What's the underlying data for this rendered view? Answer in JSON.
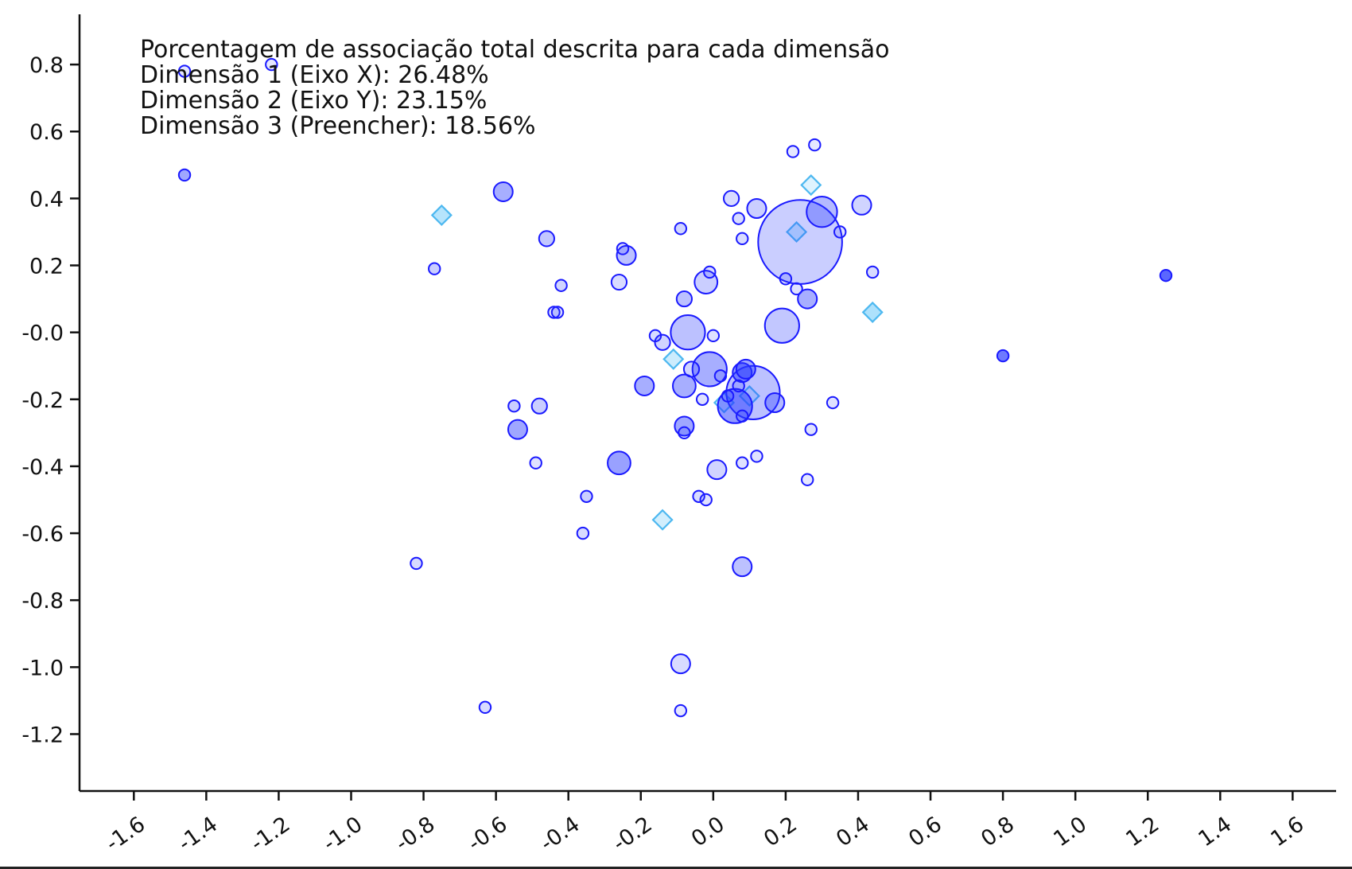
{
  "chart_data": {
    "type": "scatter",
    "annotation": [
      "Porcentagem de associação total descrita para cada dimensão",
      "Dimensão 1 (Eixo X): 26.48%",
      "Dimensão 2 (Eixo Y): 23.15%",
      "Dimensão 3 (Preencher): 18.56%"
    ],
    "xlim": [
      -1.75,
      1.72
    ],
    "ylim": [
      -1.37,
      0.95
    ],
    "xticks": [
      -1.6,
      -1.4,
      -1.2,
      -1.0,
      -0.8,
      -0.6,
      -0.4,
      -0.2,
      0.0,
      0.2,
      0.4,
      0.6,
      0.8,
      1.0,
      1.2,
      1.4,
      1.6
    ],
    "xtick_labels": [
      "-1.6",
      "-1.4",
      "-1.2",
      "-1.0",
      "-0.8",
      "-0.6",
      "-0.4",
      "-0.2",
      "0.0",
      "0.2",
      "0.4",
      "0.6",
      "0.8",
      "1.0",
      "1.2",
      "1.4",
      "1.6"
    ],
    "yticks": [
      0.8,
      0.6,
      0.4,
      0.2,
      0.0,
      -0.2,
      -0.4,
      -0.6,
      -0.8,
      -1.0,
      -1.2
    ],
    "ytick_labels": [
      "0.8",
      "0.6",
      "0.4",
      "0.2",
      "-0.0",
      "-0.2",
      "-0.4",
      "-0.6",
      "-0.8",
      "-1.0",
      "-1.2"
    ],
    "colors": {
      "circle_stroke": "#1a1aff",
      "circle_fill": "#2b3cff",
      "diamond_stroke": "#4db8f0",
      "diamond_fill": "#7fd0fa"
    },
    "circles": [
      {
        "x": -1.46,
        "y": 0.78,
        "size": 3,
        "fill": 0.0
      },
      {
        "x": -1.22,
        "y": 0.8,
        "size": 3,
        "fill": 0.0
      },
      {
        "x": -1.46,
        "y": 0.47,
        "size": 3,
        "fill": 0.5
      },
      {
        "x": -0.58,
        "y": 0.42,
        "size": 5,
        "fill": 0.45
      },
      {
        "x": -0.46,
        "y": 0.28,
        "size": 4,
        "fill": 0.25
      },
      {
        "x": -0.77,
        "y": 0.19,
        "size": 3,
        "fill": 0.2
      },
      {
        "x": -0.42,
        "y": 0.14,
        "size": 3,
        "fill": 0.15
      },
      {
        "x": -0.44,
        "y": 0.06,
        "size": 3,
        "fill": 0.1
      },
      {
        "x": -0.43,
        "y": 0.06,
        "size": 3,
        "fill": 0.1
      },
      {
        "x": -0.25,
        "y": 0.25,
        "size": 3,
        "fill": 0.1
      },
      {
        "x": -0.24,
        "y": 0.23,
        "size": 5,
        "fill": 0.3
      },
      {
        "x": -0.26,
        "y": 0.15,
        "size": 4,
        "fill": 0.1
      },
      {
        "x": -0.09,
        "y": 0.31,
        "size": 3,
        "fill": 0.15
      },
      {
        "x": -0.08,
        "y": 0.1,
        "size": 4,
        "fill": 0.3
      },
      {
        "x": -0.02,
        "y": 0.15,
        "size": 6,
        "fill": 0.2
      },
      {
        "x": -0.01,
        "y": 0.18,
        "size": 3,
        "fill": 0.1
      },
      {
        "x": 0.05,
        "y": 0.4,
        "size": 4,
        "fill": 0.1
      },
      {
        "x": 0.07,
        "y": 0.34,
        "size": 3,
        "fill": 0.1
      },
      {
        "x": 0.12,
        "y": 0.37,
        "size": 5,
        "fill": 0.2
      },
      {
        "x": 0.22,
        "y": 0.54,
        "size": 3,
        "fill": 0.0
      },
      {
        "x": 0.28,
        "y": 0.56,
        "size": 3,
        "fill": 0.0
      },
      {
        "x": 0.08,
        "y": 0.28,
        "size": 3,
        "fill": 0.1
      },
      {
        "x": 0.24,
        "y": 0.27,
        "size": 22,
        "fill": 0.2
      },
      {
        "x": 0.3,
        "y": 0.36,
        "size": 8,
        "fill": 0.35
      },
      {
        "x": 0.35,
        "y": 0.3,
        "size": 3,
        "fill": 0.05
      },
      {
        "x": 0.41,
        "y": 0.38,
        "size": 5,
        "fill": 0.15
      },
      {
        "x": 0.44,
        "y": 0.18,
        "size": 3,
        "fill": 0.1
      },
      {
        "x": 0.2,
        "y": 0.16,
        "size": 3,
        "fill": 0.1
      },
      {
        "x": 0.23,
        "y": 0.13,
        "size": 3,
        "fill": 0.05
      },
      {
        "x": 0.26,
        "y": 0.1,
        "size": 5,
        "fill": 0.45
      },
      {
        "x": 1.25,
        "y": 0.17,
        "size": 3,
        "fill": 1.0
      },
      {
        "x": 0.8,
        "y": -0.07,
        "size": 3,
        "fill": 0.85
      },
      {
        "x": -0.16,
        "y": -0.01,
        "size": 3,
        "fill": 0.1
      },
      {
        "x": -0.14,
        "y": -0.03,
        "size": 4,
        "fill": 0.15
      },
      {
        "x": -0.07,
        "y": 0.0,
        "size": 9,
        "fill": 0.3
      },
      {
        "x": 0.0,
        "y": -0.01,
        "size": 3,
        "fill": 0.05
      },
      {
        "x": 0.19,
        "y": 0.02,
        "size": 9,
        "fill": 0.25
      },
      {
        "x": -0.01,
        "y": -0.11,
        "size": 9,
        "fill": 0.45
      },
      {
        "x": -0.06,
        "y": -0.11,
        "size": 4,
        "fill": 0.15
      },
      {
        "x": -0.08,
        "y": -0.16,
        "size": 6,
        "fill": 0.45
      },
      {
        "x": 0.02,
        "y": -0.13,
        "size": 3,
        "fill": 0.1
      },
      {
        "x": 0.11,
        "y": -0.18,
        "size": 14,
        "fill": 0.3
      },
      {
        "x": 0.08,
        "y": -0.12,
        "size": 5,
        "fill": 0.6
      },
      {
        "x": 0.09,
        "y": -0.11,
        "size": 5,
        "fill": 0.5
      },
      {
        "x": 0.07,
        "y": -0.16,
        "size": 3,
        "fill": 0.1
      },
      {
        "x": 0.04,
        "y": -0.19,
        "size": 3,
        "fill": 0.05
      },
      {
        "x": 0.06,
        "y": -0.22,
        "size": 9,
        "fill": 0.6
      },
      {
        "x": 0.08,
        "y": -0.25,
        "size": 3,
        "fill": 0.1
      },
      {
        "x": 0.17,
        "y": -0.21,
        "size": 5,
        "fill": 0.35
      },
      {
        "x": -0.03,
        "y": -0.2,
        "size": 3,
        "fill": 0.05
      },
      {
        "x": -0.19,
        "y": -0.16,
        "size": 5,
        "fill": 0.45
      },
      {
        "x": -0.55,
        "y": -0.22,
        "size": 3,
        "fill": 0.2
      },
      {
        "x": -0.48,
        "y": -0.22,
        "size": 4,
        "fill": 0.2
      },
      {
        "x": -0.54,
        "y": -0.29,
        "size": 5,
        "fill": 0.5
      },
      {
        "x": -0.08,
        "y": -0.28,
        "size": 5,
        "fill": 0.5
      },
      {
        "x": -0.08,
        "y": -0.3,
        "size": 3,
        "fill": 0.1
      },
      {
        "x": 0.27,
        "y": -0.29,
        "size": 3,
        "fill": 0.05
      },
      {
        "x": 0.33,
        "y": -0.21,
        "size": 3,
        "fill": 0.05
      },
      {
        "x": -0.26,
        "y": -0.39,
        "size": 6,
        "fill": 0.55
      },
      {
        "x": -0.49,
        "y": -0.39,
        "size": 3,
        "fill": 0.05
      },
      {
        "x": 0.01,
        "y": -0.41,
        "size": 5,
        "fill": 0.15
      },
      {
        "x": 0.08,
        "y": -0.39,
        "size": 3,
        "fill": 0.05
      },
      {
        "x": 0.12,
        "y": -0.37,
        "size": 3,
        "fill": 0.05
      },
      {
        "x": 0.26,
        "y": -0.44,
        "size": 3,
        "fill": 0.0
      },
      {
        "x": -0.35,
        "y": -0.49,
        "size": 3,
        "fill": 0.2
      },
      {
        "x": -0.04,
        "y": -0.49,
        "size": 3,
        "fill": 0.1
      },
      {
        "x": -0.02,
        "y": -0.5,
        "size": 3,
        "fill": 0.05
      },
      {
        "x": -0.36,
        "y": -0.6,
        "size": 3,
        "fill": 0.1
      },
      {
        "x": -0.82,
        "y": -0.69,
        "size": 3,
        "fill": 0.1
      },
      {
        "x": 0.08,
        "y": -0.7,
        "size": 5,
        "fill": 0.3
      },
      {
        "x": -0.09,
        "y": -0.99,
        "size": 5,
        "fill": 0.1
      },
      {
        "x": -0.63,
        "y": -1.12,
        "size": 3,
        "fill": 0.1
      },
      {
        "x": -0.09,
        "y": -1.13,
        "size": 3,
        "fill": 0.0
      }
    ],
    "diamonds": [
      {
        "x": -0.75,
        "y": 0.35,
        "fill": 0.6
      },
      {
        "x": 0.27,
        "y": 0.44,
        "fill": 0.15
      },
      {
        "x": 0.23,
        "y": 0.3,
        "fill": 0.35
      },
      {
        "x": 0.44,
        "y": 0.06,
        "fill": 0.7
      },
      {
        "x": -0.11,
        "y": -0.08,
        "fill": 0.35
      },
      {
        "x": 0.03,
        "y": -0.21,
        "fill": 0.2
      },
      {
        "x": 0.1,
        "y": -0.19,
        "fill": 0.2
      },
      {
        "x": -0.14,
        "y": -0.56,
        "fill": 0.3
      }
    ]
  }
}
